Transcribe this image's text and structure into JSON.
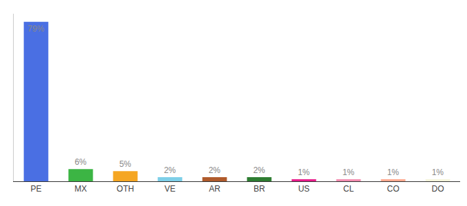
{
  "chart_data": {
    "type": "bar",
    "categories": [
      "PE",
      "MX",
      "OTH",
      "VE",
      "AR",
      "BR",
      "US",
      "CL",
      "CO",
      "DO"
    ],
    "values": [
      79,
      6,
      5,
      2,
      2,
      2,
      1,
      1,
      1,
      1
    ],
    "value_labels": [
      "79%",
      "6%",
      "5%",
      "2%",
      "2%",
      "2%",
      "1%",
      "1%",
      "1%",
      "1%"
    ],
    "colors": [
      "#4A6FE3",
      "#3CB544",
      "#F5A623",
      "#7ECFE8",
      "#B05B2C",
      "#2E7D32",
      "#E91E8C",
      "#F48FB1",
      "#FFAB91",
      "#F5F5DC"
    ],
    "ylim": [
      0,
      83
    ],
    "grid": false,
    "data_labels": true,
    "tick_labels": "x"
  }
}
